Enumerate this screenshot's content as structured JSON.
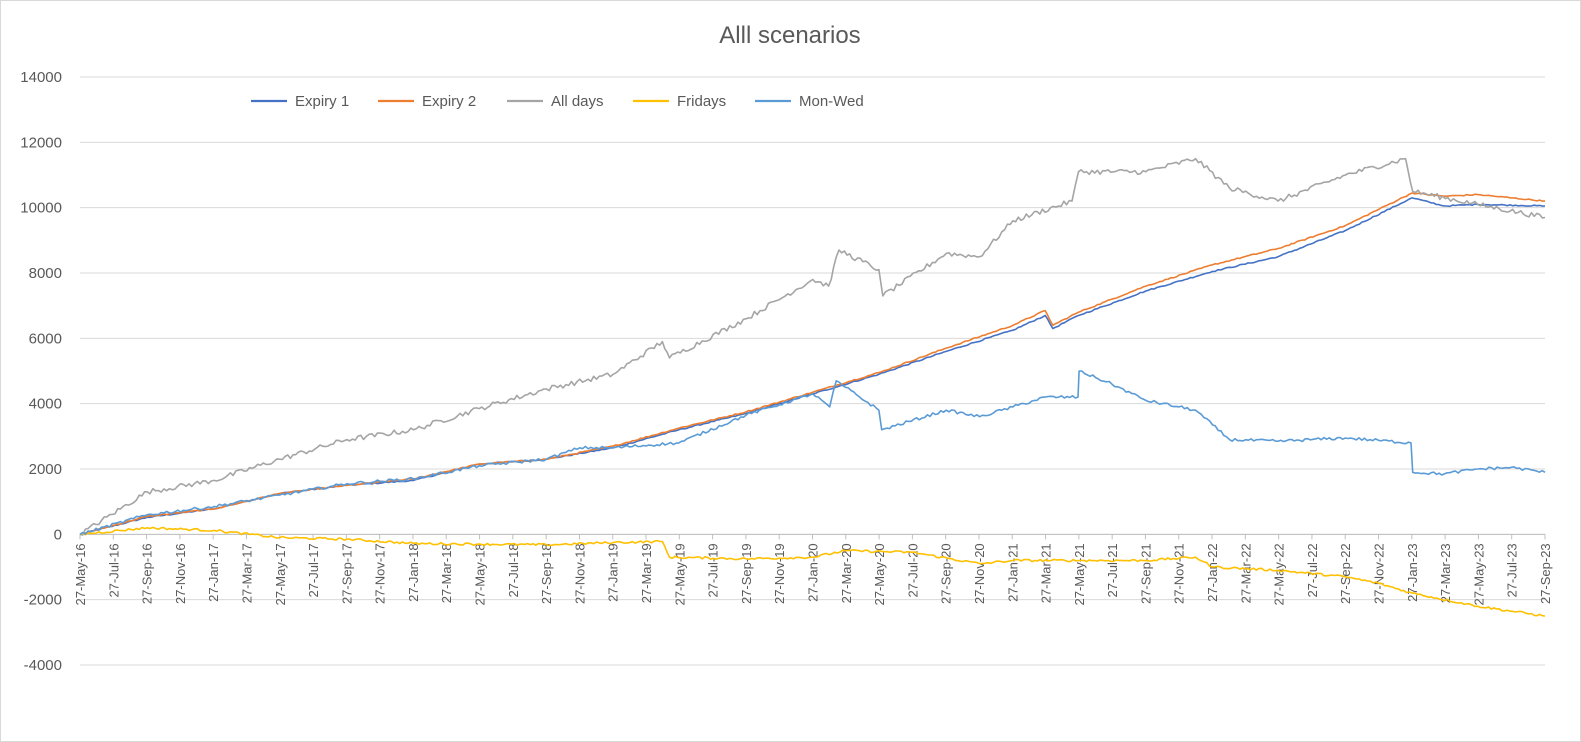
{
  "chart_data": {
    "type": "line",
    "title": "Alll scenarios",
    "xlabel": "",
    "ylabel": "",
    "ylim": [
      -4000,
      14000
    ],
    "yticks": [
      14000,
      12000,
      10000,
      8000,
      6000,
      4000,
      2000,
      0,
      -2000,
      -4000
    ],
    "grid": true,
    "legend_position": "top",
    "x_start": "2016-05-27",
    "x_end": "2023-09-27",
    "x_tick_labels": [
      "27-May-16",
      "27-Jul-16",
      "27-Sep-16",
      "27-Nov-16",
      "27-Jan-17",
      "27-Mar-17",
      "27-May-17",
      "27-Jul-17",
      "27-Sep-17",
      "27-Nov-17",
      "27-Jan-18",
      "27-Mar-18",
      "27-May-18",
      "27-Jul-18",
      "27-Sep-18",
      "27-Nov-18",
      "27-Jan-19",
      "27-Mar-19",
      "27-May-19",
      "27-Jul-19",
      "27-Sep-19",
      "27-Nov-19",
      "27-Jan-20",
      "27-Mar-20",
      "27-May-20",
      "27-Jul-20",
      "27-Sep-20",
      "27-Nov-20",
      "27-Jan-21",
      "27-Mar-21",
      "27-May-21",
      "27-Jul-21",
      "27-Sep-21",
      "27-Nov-21",
      "27-Jan-22",
      "27-Mar-22",
      "27-May-22",
      "27-Jul-22",
      "27-Sep-22",
      "27-Nov-22",
      "27-Jan-23",
      "27-Mar-23",
      "27-May-23",
      "27-Jul-23",
      "27-Sep-23"
    ],
    "series": [
      {
        "name": "Expiry 1",
        "color": "#4472c4",
        "x": [
          "2016-05-27",
          "2016-09-27",
          "2017-01-27",
          "2017-05-27",
          "2017-09-27",
          "2018-01-27",
          "2018-05-27",
          "2018-09-27",
          "2019-01-27",
          "2019-05-27",
          "2019-09-27",
          "2020-01-27",
          "2020-05-27",
          "2020-09-27",
          "2021-01-27",
          "2021-03-27",
          "2021-04-10",
          "2021-05-27",
          "2021-09-27",
          "2022-01-27",
          "2022-05-27",
          "2022-09-27",
          "2023-01-27",
          "2023-03-27",
          "2023-05-27",
          "2023-09-27"
        ],
        "values": [
          0,
          520,
          780,
          1250,
          1500,
          1650,
          2150,
          2300,
          2650,
          3200,
          3700,
          4300,
          4900,
          5600,
          6250,
          6700,
          6300,
          6700,
          7450,
          8050,
          8500,
          9300,
          10300,
          10050,
          10100,
          10050
        ]
      },
      {
        "name": "Expiry 2",
        "color": "#ed7d31",
        "x": [
          "2016-05-27",
          "2016-09-27",
          "2017-01-27",
          "2017-05-27",
          "2017-09-27",
          "2018-01-27",
          "2018-05-27",
          "2018-09-27",
          "2019-01-27",
          "2019-05-27",
          "2019-09-27",
          "2020-01-27",
          "2020-05-27",
          "2020-09-27",
          "2021-01-27",
          "2021-03-27",
          "2021-04-10",
          "2021-05-27",
          "2021-09-27",
          "2022-01-27",
          "2022-05-27",
          "2022-09-27",
          "2023-01-27",
          "2023-03-27",
          "2023-05-27",
          "2023-09-27"
        ],
        "values": [
          0,
          550,
          780,
          1250,
          1500,
          1700,
          2150,
          2300,
          2700,
          3250,
          3750,
          4350,
          4950,
          5700,
          6400,
          6850,
          6400,
          6800,
          7600,
          8250,
          8750,
          9450,
          10450,
          10350,
          10400,
          10200
        ]
      },
      {
        "name": "All days",
        "color": "#a5a5a5",
        "x": [
          "2016-05-27",
          "2016-09-27",
          "2017-01-27",
          "2017-05-27",
          "2017-09-27",
          "2018-01-27",
          "2018-05-27",
          "2018-09-27",
          "2019-01-27",
          "2019-04-27",
          "2019-05-10",
          "2019-09-27",
          "2020-01-27",
          "2020-02-25",
          "2020-03-15",
          "2020-05-27",
          "2020-06-03",
          "2020-09-27",
          "2020-11-27",
          "2021-01-27",
          "2021-05-15",
          "2021-05-27",
          "2021-09-27",
          "2021-12-27",
          "2022-02-27",
          "2022-05-27",
          "2022-09-27",
          "2023-01-15",
          "2023-01-28",
          "2023-05-27",
          "2023-09-27"
        ],
        "values": [
          0,
          1300,
          1650,
          2300,
          2900,
          3200,
          3850,
          4450,
          4900,
          5900,
          5400,
          6600,
          7800,
          7600,
          8700,
          8100,
          7300,
          8600,
          8500,
          9600,
          10200,
          11100,
          11100,
          11500,
          10600,
          10200,
          11000,
          11500,
          10500,
          10100,
          9700
        ]
      },
      {
        "name": "Fridays",
        "color": "#ffc000",
        "x": [
          "2016-05-27",
          "2016-09-27",
          "2017-01-27",
          "2017-05-27",
          "2017-09-27",
          "2018-01-27",
          "2018-05-27",
          "2018-09-27",
          "2019-01-27",
          "2019-04-27",
          "2019-05-10",
          "2019-09-27",
          "2020-01-27",
          "2020-03-27",
          "2020-07-27",
          "2020-11-27",
          "2021-01-27",
          "2021-05-27",
          "2021-09-27",
          "2021-12-27",
          "2022-01-27",
          "2022-05-27",
          "2022-09-27",
          "2022-11-27",
          "2023-01-27",
          "2023-05-27",
          "2023-09-27"
        ],
        "values": [
          0,
          200,
          120,
          -100,
          -150,
          -280,
          -300,
          -320,
          -250,
          -220,
          -700,
          -750,
          -700,
          -500,
          -550,
          -900,
          -800,
          -800,
          -800,
          -700,
          -1000,
          -1100,
          -1300,
          -1500,
          -1800,
          -2200,
          -2500
        ]
      },
      {
        "name": "Mon-Wed",
        "color": "#5b9bd5",
        "x": [
          "2016-05-27",
          "2016-09-27",
          "2017-01-27",
          "2017-05-27",
          "2017-09-27",
          "2018-01-27",
          "2018-05-27",
          "2018-09-27",
          "2018-11-27",
          "2019-01-27",
          "2019-05-27",
          "2019-09-27",
          "2020-01-27",
          "2020-02-27",
          "2020-03-10",
          "2020-03-27",
          "2020-05-27",
          "2020-06-01",
          "2020-09-27",
          "2020-11-27",
          "2021-01-27",
          "2021-03-27",
          "2021-05-26",
          "2021-05-28",
          "2021-07-27",
          "2021-09-27",
          "2021-12-27",
          "2022-02-27",
          "2022-05-27",
          "2022-09-27",
          "2023-01-25",
          "2023-01-28",
          "2023-03-27",
          "2023-05-27",
          "2023-07-27",
          "2023-09-27"
        ],
        "values": [
          0,
          600,
          850,
          1200,
          1550,
          1700,
          2100,
          2300,
          2650,
          2650,
          2800,
          3650,
          4300,
          3900,
          4700,
          4500,
          3800,
          3200,
          3800,
          3600,
          3900,
          4200,
          4200,
          5000,
          4600,
          4100,
          3800,
          2900,
          2850,
          2950,
          2800,
          1900,
          1850,
          2000,
          2050,
          1900
        ]
      }
    ]
  }
}
